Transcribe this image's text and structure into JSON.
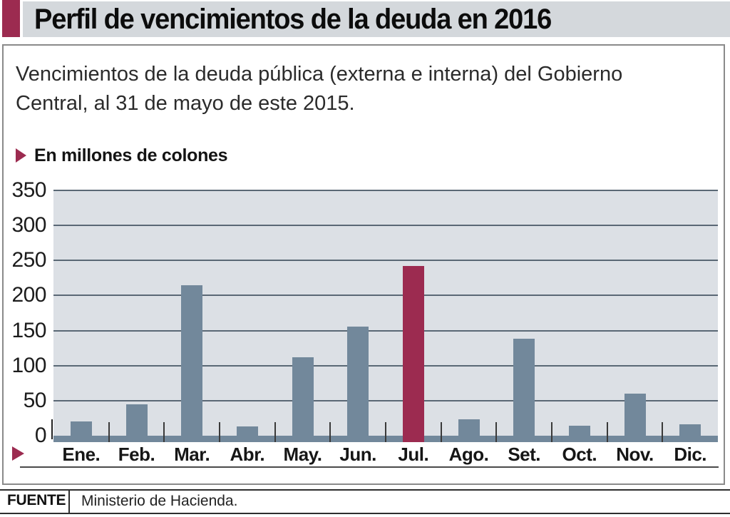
{
  "header": {
    "title": "Perfil de vencimientos de la deuda en 2016",
    "accent_color": "#9C2B50"
  },
  "subtitle": "Vencimientos de la deuda pública (externa e interna) del Gobierno Central, al 31 de mayo de este 2015.",
  "legend": {
    "label": "En millones de colones"
  },
  "chart_data": {
    "type": "bar",
    "title": "Perfil de vencimientos de la deuda en 2016",
    "subtitle": "Vencimientos de la deuda pública (externa e interna) del Gobierno Central, al 31 de mayo de este 2015.",
    "unit_label": "En millones de colones",
    "categories": [
      "Ene.",
      "Feb.",
      "Mar.",
      "Abr.",
      "May.",
      "Jun.",
      "Jul.",
      "Ago.",
      "Set.",
      "Oct.",
      "Nov.",
      "Dic."
    ],
    "values": [
      20,
      45,
      215,
      13,
      112,
      156,
      242,
      23,
      138,
      14,
      60,
      16
    ],
    "highlight_index": 6,
    "bar_color": "#72889B",
    "highlight_color": "#9C2B50",
    "plot_background": "#DCE0E5",
    "gridline_color": "#5A6875",
    "ylim": [
      0,
      350
    ],
    "ytick_step": 50,
    "yticks": [
      0,
      50,
      100,
      150,
      200,
      250,
      300,
      350
    ],
    "grid": true,
    "legend_position": "none",
    "xlabel": "",
    "ylabel": "En millones de colones"
  },
  "footer": {
    "source_label": "FUENTE",
    "source_value": "Ministerio de Hacienda."
  }
}
